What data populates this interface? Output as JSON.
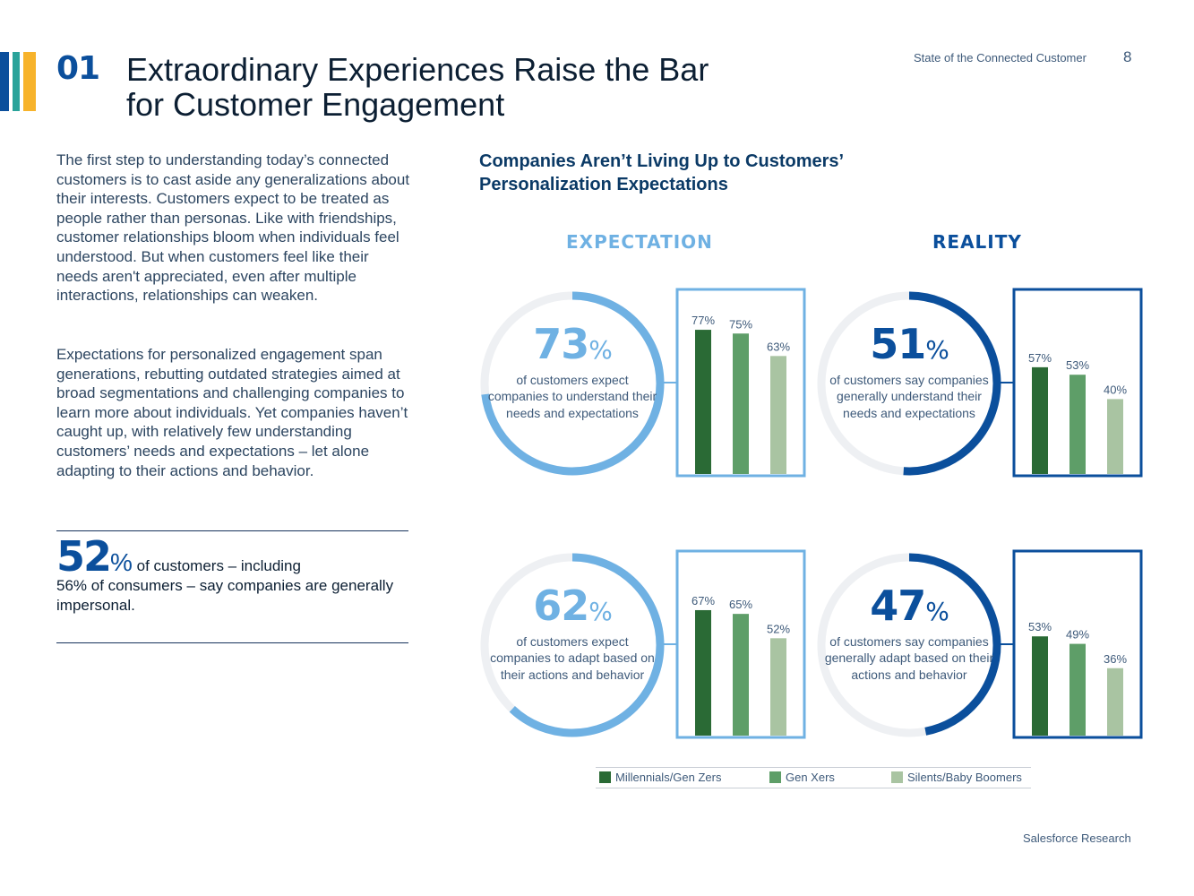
{
  "header": {
    "section_number": "01",
    "title_line1": "Extraordinary Experiences Raise the Bar",
    "title_line2": "for Customer Engagement",
    "report_name": "State of the Connected Customer",
    "page_number": "8",
    "accent_colors": [
      "#0b4f9c",
      "#2aa39a",
      "#f7b32b"
    ]
  },
  "body": {
    "paragraph1": "The first step to understanding today’s connected customers is to cast aside any generalizations about their interests. Customers expect to be treated as people rather than personas. Like with friendships, customer relationships bloom when individuals feel understood. But when customers feel like their needs aren't appreciated, even after multiple interactions, relationships can weaken.",
    "paragraph2": "Expectations for personalized engagement span generations, rebutting outdated strategies aimed at broad segmentations and challenging companies to learn more about individuals. Yet companies haven’t caught up, with relatively few understanding customers’ needs and expectations – let alone adapting to their actions and behavior."
  },
  "callout": {
    "value": "52",
    "percent_sign": "%",
    "text_line1": " of customers – including",
    "text_line2": "56% of consumers – say companies are generally impersonal."
  },
  "chart_title": "Companies Aren’t Living Up to Customers’ Personalization Expectations",
  "columns": {
    "expectation": "EXPECTATION",
    "reality": "REALITY"
  },
  "colors": {
    "expectation": "#6fb1e3",
    "reality": "#0b4f9c",
    "ring_track": "#eef0f3",
    "millennials": "#2a6a35",
    "gen_x": "#5e9e68",
    "boomers": "#a9c4a2"
  },
  "chart_data": [
    {
      "type": "bar",
      "group": "EXPECTATION",
      "headline_value": 73,
      "headline_label": "of customers expect companies to understand their needs and expectations",
      "categories": [
        "Millennials/Gen Zers",
        "Gen Xers",
        "Silents/Baby Boomers"
      ],
      "values": [
        77,
        75,
        63
      ],
      "value_labels": [
        "77%",
        "75%",
        "63%"
      ]
    },
    {
      "type": "bar",
      "group": "REALITY",
      "headline_value": 51,
      "headline_label": "of customers say companies generally understand their needs and expectations",
      "categories": [
        "Millennials/Gen Zers",
        "Gen Xers",
        "Silents/Baby Boomers"
      ],
      "values": [
        57,
        53,
        40
      ],
      "value_labels": [
        "57%",
        "53%",
        "40%"
      ]
    },
    {
      "type": "bar",
      "group": "EXPECTATION",
      "headline_value": 62,
      "headline_label": "of customers expect companies to adapt based on their actions and behavior",
      "categories": [
        "Millennials/Gen Zers",
        "Gen Xers",
        "Silents/Baby Boomers"
      ],
      "values": [
        67,
        65,
        52
      ],
      "value_labels": [
        "67%",
        "65%",
        "52%"
      ]
    },
    {
      "type": "bar",
      "group": "REALITY",
      "headline_value": 47,
      "headline_label": "of customers say companies generally adapt based on their actions and behavior",
      "categories": [
        "Millennials/Gen Zers",
        "Gen Xers",
        "Silents/Baby Boomers"
      ],
      "values": [
        53,
        49,
        36
      ],
      "value_labels": [
        "53%",
        "49%",
        "36%"
      ]
    }
  ],
  "legend": [
    "Millennials/Gen Zers",
    "Gen Xers",
    "Silents/Baby Boomers"
  ],
  "footer": "Salesforce Research"
}
